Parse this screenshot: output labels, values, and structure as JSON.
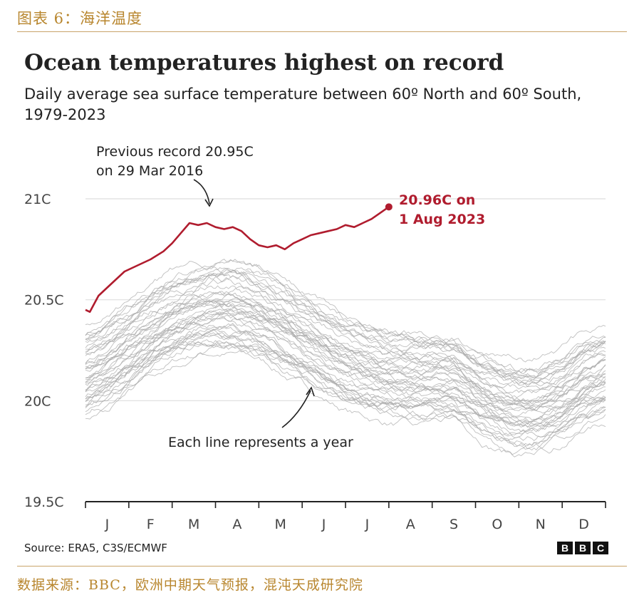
{
  "figure_label": "图表 6：海洋温度",
  "footer_source": "数据来源：BBC，欧洲中期天气预报，混沌天成研究院",
  "chart_data": {
    "type": "line",
    "title": "Ocean temperatures highest on record",
    "subtitle": "Daily average sea surface temperature between 60º North and 60º South, 1979-2023",
    "ylim": [
      19.5,
      21.1
    ],
    "y_ticks": [
      "21C",
      "20.5C",
      "20C",
      "19.5C"
    ],
    "y_tick_values": [
      21,
      20.5,
      20,
      19.5
    ],
    "x_ticks": [
      "J",
      "F",
      "M",
      "A",
      "M",
      "J",
      "J",
      "A",
      "S",
      "O",
      "N",
      "D"
    ],
    "grid": true,
    "annotations": {
      "previous_record": [
        "Previous record 20.95C",
        "on 29 Mar 2016"
      ],
      "current_record": [
        "20.96C on",
        "1 Aug 2023"
      ],
      "lines_note": "Each line represents a year"
    },
    "highlight_series": {
      "color": "#b01c2e",
      "month": [
        0.0,
        0.1,
        0.3,
        0.6,
        0.9,
        1.2,
        1.5,
        1.8,
        2.0,
        2.2,
        2.4,
        2.6,
        2.8,
        3.0,
        3.2,
        3.4,
        3.6,
        3.8,
        4.0,
        4.2,
        4.4,
        4.6,
        4.8,
        5.0,
        5.2,
        5.4,
        5.6,
        5.8,
        6.0,
        6.2,
        6.4,
        6.6,
        6.8,
        7.0
      ],
      "values": [
        20.45,
        20.44,
        20.52,
        20.58,
        20.64,
        20.67,
        20.7,
        20.74,
        20.78,
        20.83,
        20.88,
        20.87,
        20.88,
        20.86,
        20.85,
        20.86,
        20.84,
        20.8,
        20.77,
        20.76,
        20.77,
        20.75,
        20.78,
        20.8,
        20.82,
        20.83,
        20.84,
        20.85,
        20.87,
        20.86,
        20.88,
        20.9,
        20.93,
        20.96
      ]
    },
    "background_series_color": "#a9a9a9",
    "background_series_count": 44
  },
  "source_text": "Source: ERA5, C3S/ECMWF",
  "logo": [
    "B",
    "B",
    "C"
  ]
}
